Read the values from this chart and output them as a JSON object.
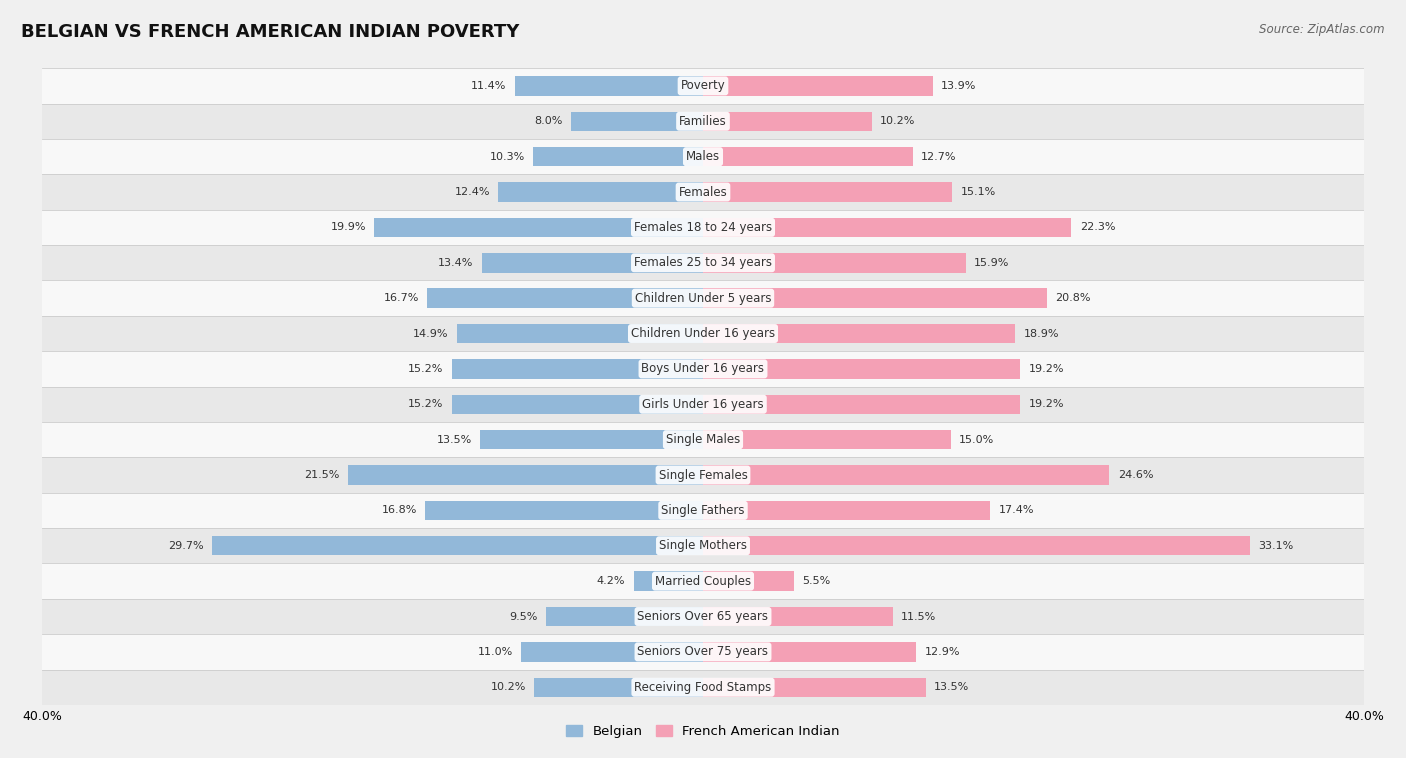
{
  "title": "BELGIAN VS FRENCH AMERICAN INDIAN POVERTY",
  "source": "Source: ZipAtlas.com",
  "categories": [
    "Poverty",
    "Families",
    "Males",
    "Females",
    "Females 18 to 24 years",
    "Females 25 to 34 years",
    "Children Under 5 years",
    "Children Under 16 years",
    "Boys Under 16 years",
    "Girls Under 16 years",
    "Single Males",
    "Single Females",
    "Single Fathers",
    "Single Mothers",
    "Married Couples",
    "Seniors Over 65 years",
    "Seniors Over 75 years",
    "Receiving Food Stamps"
  ],
  "belgian": [
    11.4,
    8.0,
    10.3,
    12.4,
    19.9,
    13.4,
    16.7,
    14.9,
    15.2,
    15.2,
    13.5,
    21.5,
    16.8,
    29.7,
    4.2,
    9.5,
    11.0,
    10.2
  ],
  "french": [
    13.9,
    10.2,
    12.7,
    15.1,
    22.3,
    15.9,
    20.8,
    18.9,
    19.2,
    19.2,
    15.0,
    24.6,
    17.4,
    33.1,
    5.5,
    11.5,
    12.9,
    13.5
  ],
  "belgian_color": "#92b8d9",
  "french_color": "#f4a0b5",
  "belgian_label": "Belgian",
  "french_label": "French American Indian",
  "xlim": 40.0,
  "background_color": "#f0f0f0",
  "row_bg_light": "#e8e8e8",
  "row_bg_white": "#f8f8f8",
  "title_fontsize": 13,
  "label_fontsize": 8.5,
  "value_fontsize": 8.0
}
